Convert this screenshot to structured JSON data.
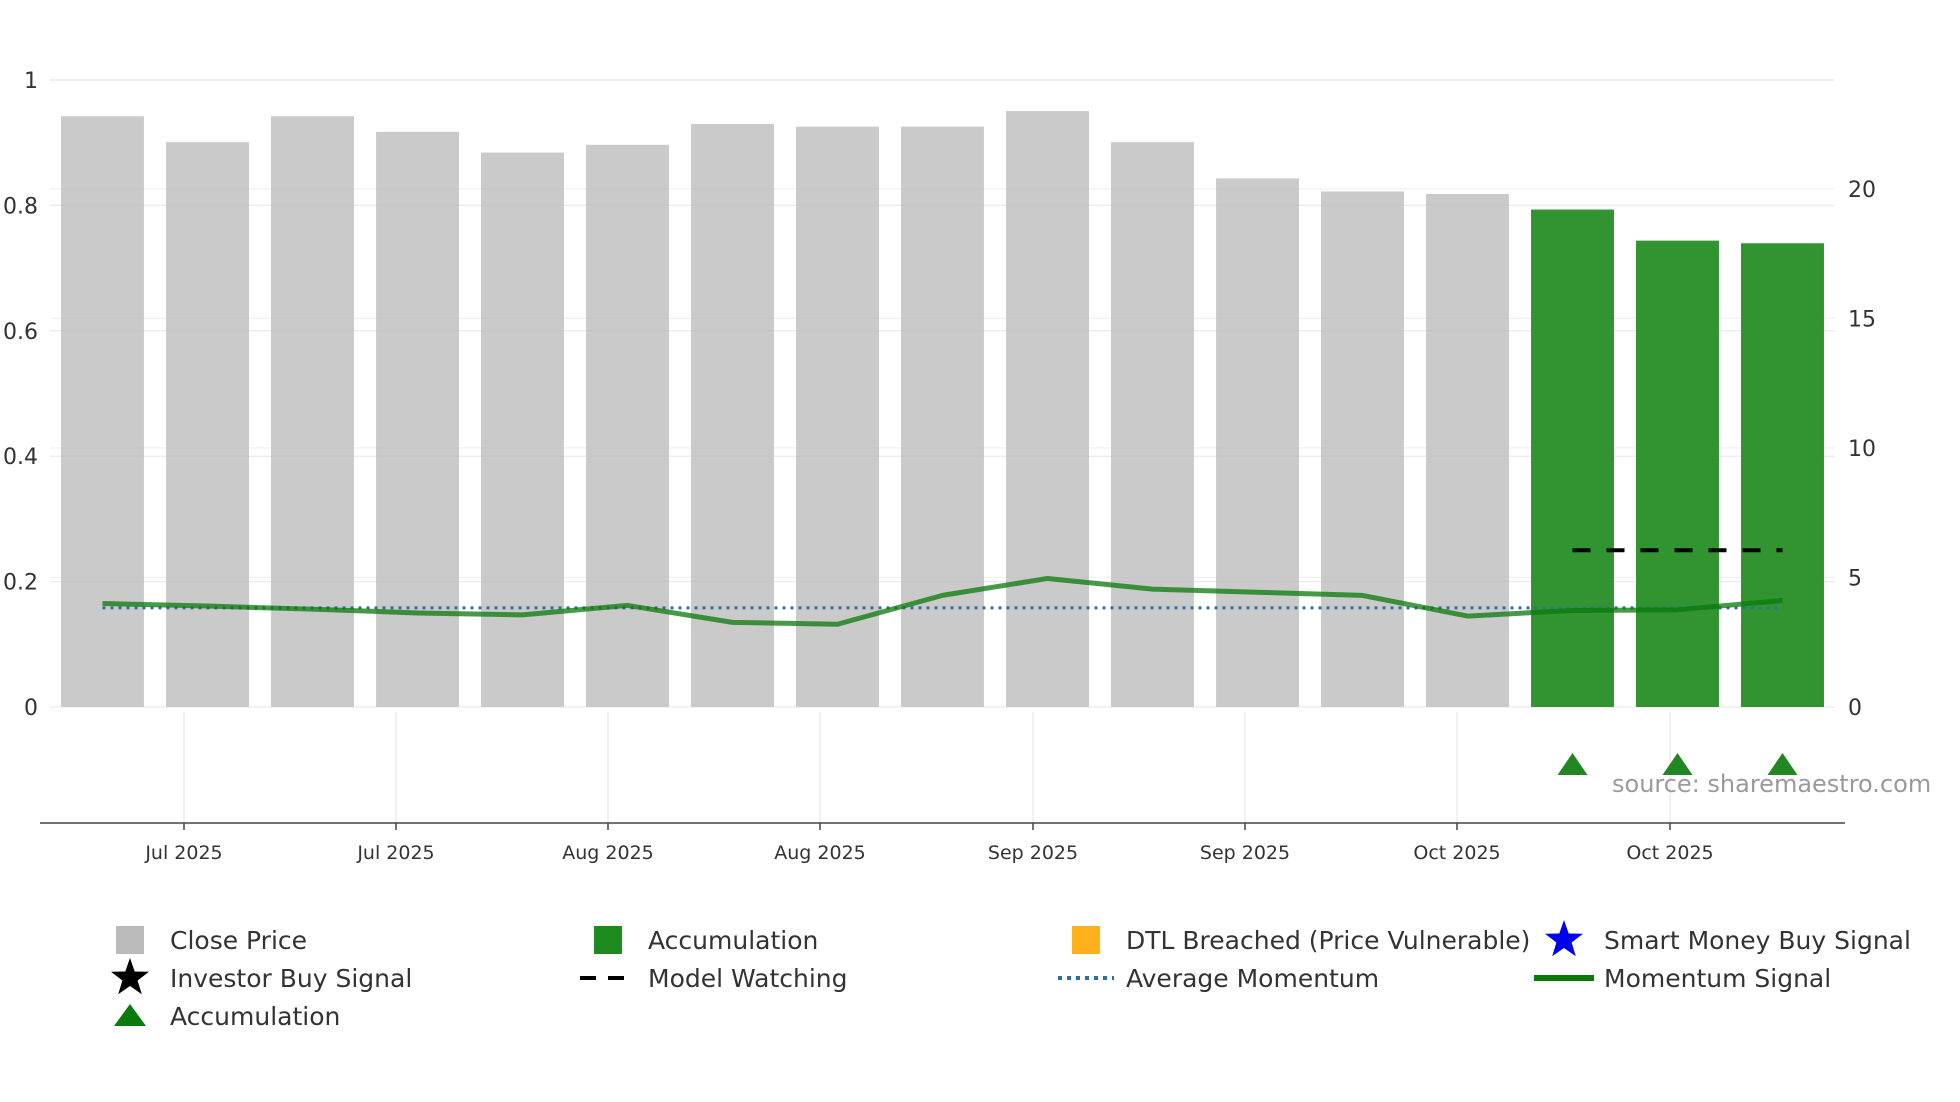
{
  "chart_data": {
    "type": "bar",
    "title": "",
    "source": "source: sharemaestro.com",
    "left_axis": {
      "range": [
        0,
        1
      ],
      "ticks": [
        0,
        0.2,
        0.4,
        0.6,
        0.8,
        1
      ],
      "tick_labels": [
        "0",
        "0.2",
        "0.4",
        "0.6",
        "0.8",
        "1"
      ]
    },
    "right_axis": {
      "range": [
        0,
        24.2
      ],
      "ticks": [
        0,
        5,
        10,
        15,
        20
      ],
      "tick_labels": [
        "0",
        "5",
        "10",
        "15",
        "20"
      ]
    },
    "x_tick_labels": [
      "Jul 2025",
      "Jul 2025",
      "Aug 2025",
      "Aug 2025",
      "Sep 2025",
      "Sep 2025",
      "Oct 2025",
      "Oct 2025"
    ],
    "close_price": {
      "name": "Close Price",
      "values": [
        22.8,
        21.8,
        22.8,
        22.2,
        21.4,
        21.7,
        22.5,
        22.4,
        22.4,
        23.0,
        21.8,
        20.4,
        19.9,
        19.8,
        19.2,
        18.0,
        17.9
      ],
      "accumulation_flags": [
        false,
        false,
        false,
        false,
        false,
        false,
        false,
        false,
        false,
        false,
        false,
        false,
        false,
        false,
        true,
        true,
        true
      ]
    },
    "momentum_signal": {
      "name": "Momentum Signal",
      "values": [
        0.165,
        0.161,
        0.156,
        0.15,
        0.147,
        0.162,
        0.135,
        0.132,
        0.178,
        0.205,
        0.188,
        0.183,
        0.178,
        0.145,
        0.154,
        0.155,
        0.17
      ]
    },
    "average_momentum": {
      "name": "Average Momentum",
      "value": 0.158
    },
    "model_watching": {
      "name": "Model Watching",
      "value": 0.25,
      "start_index": 14,
      "end_index": 16
    },
    "accumulation_markers": {
      "name": "Accumulation",
      "indices": [
        14,
        15,
        16
      ]
    },
    "legend": [
      {
        "label": "Close Price",
        "symbol": "square",
        "color": "#bbbbbb"
      },
      {
        "label": "Accumulation",
        "symbol": "square",
        "color": "#1f8b1f"
      },
      {
        "label": "DTL Breached (Price Vulnerable)",
        "symbol": "square",
        "color": "#ffb11c"
      },
      {
        "label": "Smart Money Buy Signal",
        "symbol": "star",
        "color": "#0000ee"
      },
      {
        "label": "Investor Buy Signal",
        "symbol": "star",
        "color": "#000000"
      },
      {
        "label": "Model Watching",
        "symbol": "dash",
        "color": "#000000"
      },
      {
        "label": "Average Momentum",
        "symbol": "dot",
        "color": "#2f6f9f"
      },
      {
        "label": "Momentum Signal",
        "symbol": "line",
        "color": "#0a7a0a"
      },
      {
        "label": "Accumulation",
        "symbol": "triangle",
        "color": "#0a7a0a"
      }
    ]
  }
}
